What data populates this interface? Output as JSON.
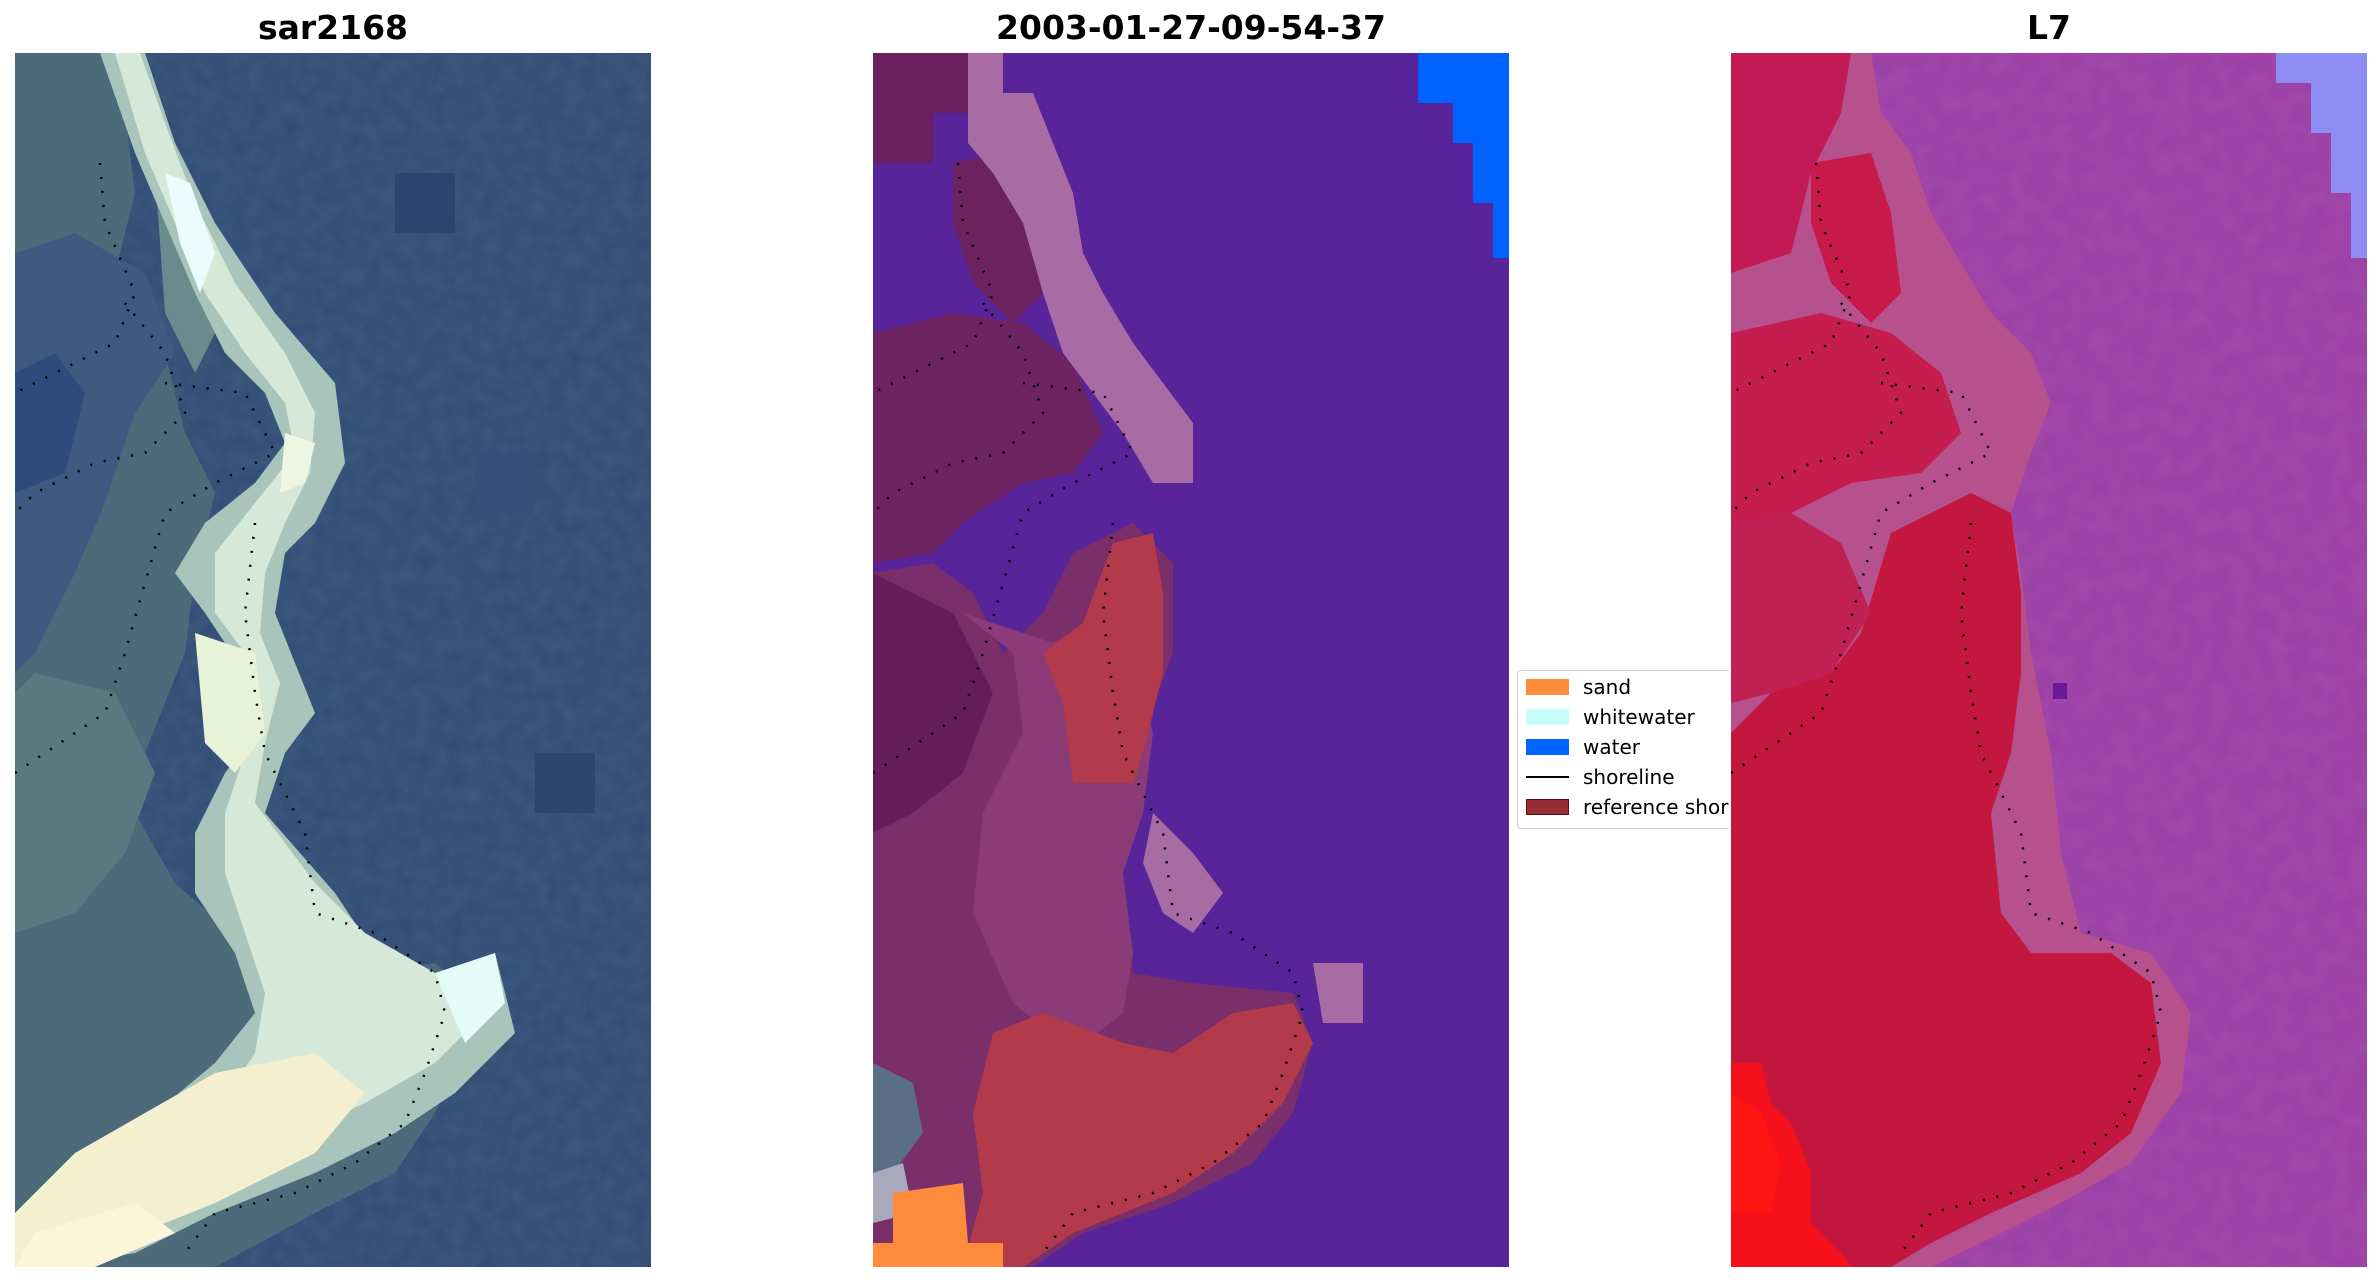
{
  "titles": {
    "left": "sar2168",
    "middle": "2003-01-27-09-54-37",
    "right": "L7"
  },
  "legend": {
    "items": [
      {
        "label": "sand",
        "type": "patch",
        "color": "#ff8c3d"
      },
      {
        "label": "whitewater",
        "type": "patch",
        "color": "#c8fcfa"
      },
      {
        "label": "water",
        "type": "patch",
        "color": "#0064ff"
      },
      {
        "label": "shoreline",
        "type": "line",
        "color": "#000000"
      },
      {
        "label": "reference shoreline",
        "type": "patch",
        "color": "#9a2c33"
      }
    ]
  },
  "colors": {
    "rgb_ocean": "#2e4a72",
    "classified_water": "#57249a",
    "false_color_background": "#9a3ea0",
    "false_color_land": "#c8123f"
  }
}
